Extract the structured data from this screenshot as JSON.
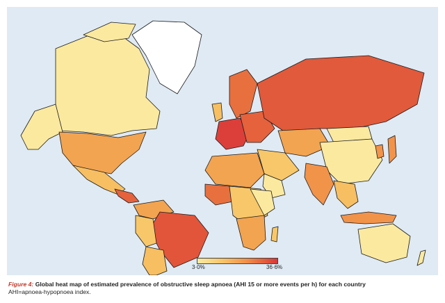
{
  "legend": {
    "min_label": "3·0%",
    "max_label": "36·6%",
    "colors": [
      "#fbeba3",
      "#f8c769",
      "#f2934a",
      "#e35a3a",
      "#d8363a"
    ],
    "min_value": 3.0,
    "max_value": 36.6
  },
  "caption": {
    "figure_label": "Figure 4:",
    "title": "Global heat map of estimated prevalence of obstructive sleep apnoea (AHI 15 or more events per h) for each country",
    "note": "AHI=apnoea-hypopnoea index."
  },
  "colors": {
    "ocean": "#dfeaf4",
    "border": "#1a1a1a",
    "greenland": "#ffffff"
  }
}
